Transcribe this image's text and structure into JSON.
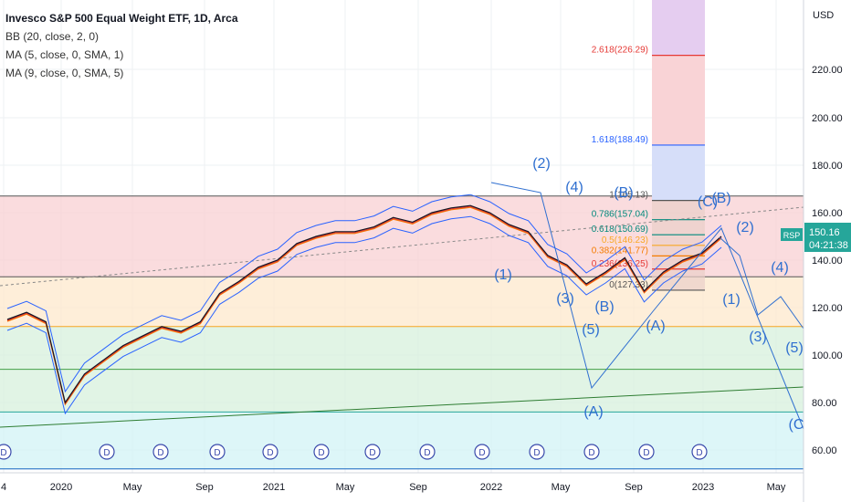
{
  "legend": {
    "title": "Invesco S&P 500 Equal Weight ETF, 1D, Arca",
    "bb": "BB (20, close, 2, 0)",
    "ma5": "MA (5, close, 0, SMA, 1)",
    "ma9": "MA (9, close, 0, SMA, 5)"
  },
  "price_axis": {
    "currency": "USD",
    "ticks": [
      "220.00",
      "200.00",
      "180.00",
      "160.00",
      "140.00",
      "120.00",
      "100.00",
      "80.00",
      "60.00"
    ]
  },
  "time_axis": {
    "ticks": [
      "4",
      "2020",
      "May",
      "Sep",
      "2021",
      "May",
      "Sep",
      "2022",
      "May",
      "Sep",
      "2023",
      "May"
    ]
  },
  "last_price": {
    "symbol": "RSP",
    "price": "150.16",
    "countdown": "04:21:38",
    "color": "#26a69a"
  },
  "colors": {
    "price": "#131722",
    "bb": "#2962ff",
    "ma5": "#e53935",
    "ma9": "#f57c00",
    "wave": "#2f6fd0",
    "fib_pink": "#f8d0d3",
    "fib_orange": "#fde8cc",
    "fib_green": "#d7f0dc",
    "fib_cyan": "#d2f3f6"
  },
  "fib_projection": {
    "labels": [
      "2.618(226.29)",
      "1.618(188.49)",
      "1(165.13)",
      "0.786(157.04)",
      "0.618(150.69)",
      "0.5(146.23)",
      "0.382(141.77)",
      "0.236(136.25)",
      "0(127.33)"
    ],
    "label_colors": [
      "#e53935",
      "#2962ff",
      "#555555",
      "#00897b",
      "#00897b",
      "#f9a825",
      "#f57c00",
      "#e53935",
      "#555555"
    ]
  },
  "wave_labels": [
    "(2)",
    "(4)",
    "(1)",
    "(3)",
    "(5)",
    "(B)",
    "(A)",
    "(B)",
    "(A)",
    "(C)",
    "(B)",
    "(2)",
    "(1)",
    "(4)",
    "(3)",
    "(5)",
    "(C"
  ],
  "dividend_marker": "D",
  "chart_data": {
    "type": "line",
    "title": "Invesco S&P 500 Equal Weight ETF, 1D, Arca",
    "xlabel": "",
    "ylabel": "USD",
    "ylim": [
      50,
      240
    ],
    "x": [
      "2019-12",
      "2020-01",
      "2020-02",
      "2020-03",
      "2020-04",
      "2020-05",
      "2020-06",
      "2020-07",
      "2020-08",
      "2020-09",
      "2020-10",
      "2020-11",
      "2020-12",
      "2021-01",
      "2021-02",
      "2021-03",
      "2021-04",
      "2021-05",
      "2021-06",
      "2021-07",
      "2021-08",
      "2021-09",
      "2021-10",
      "2021-11",
      "2021-12",
      "2022-01",
      "2022-02",
      "2022-03",
      "2022-04",
      "2022-05",
      "2022-06",
      "2022-07",
      "2022-08",
      "2022-09",
      "2022-10",
      "2022-11",
      "2022-12",
      "2023-01"
    ],
    "series": [
      {
        "name": "RSP",
        "values": [
          115,
          118,
          114,
          80,
          92,
          98,
          104,
          108,
          112,
          110,
          114,
          126,
          131,
          137,
          140,
          147,
          150,
          152,
          152,
          154,
          158,
          156,
          160,
          162,
          163,
          160,
          155,
          152,
          142,
          138,
          130,
          135,
          141,
          127,
          135,
          140,
          143,
          150
        ]
      }
    ],
    "horizontal_levels": [
      167,
      133,
      112,
      94,
      76,
      52
    ],
    "legend_position": "top-left"
  }
}
